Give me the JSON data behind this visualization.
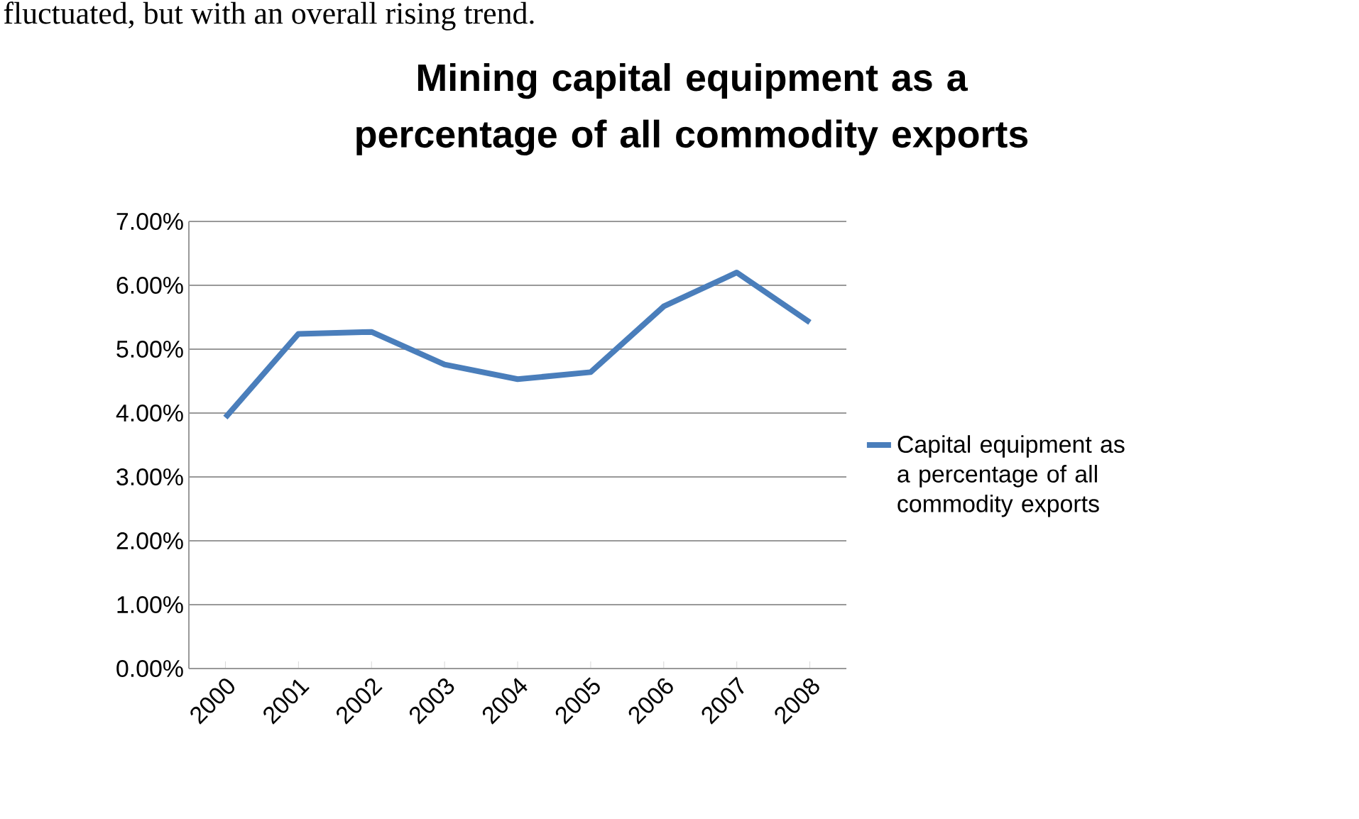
{
  "chart_data": {
    "type": "line",
    "title": "Mining capital equipment as a percentage of all commodity exports",
    "categories": [
      "2000",
      "2001",
      "2002",
      "2003",
      "2004",
      "2005",
      "2006",
      "2007",
      "2008"
    ],
    "series": [
      {
        "name": "Capital equipment as a percentage of all commodity exports",
        "color": "#4a7ebb",
        "values": [
          3.93,
          5.24,
          5.27,
          4.76,
          4.53,
          4.64,
          5.67,
          6.2,
          5.42
        ]
      }
    ],
    "ylim": [
      0,
      7
    ],
    "yticks": [
      {
        "value": 0,
        "label": "0.00%"
      },
      {
        "value": 1,
        "label": "1.00%"
      },
      {
        "value": 2,
        "label": "2.00%"
      },
      {
        "value": 3,
        "label": "3.00%"
      },
      {
        "value": 4,
        "label": "4.00%"
      },
      {
        "value": 5,
        "label": "5.00%"
      },
      {
        "value": 6,
        "label": "6.00%"
      },
      {
        "value": 7,
        "label": "7.00%"
      }
    ],
    "grid": "y",
    "legend": "right",
    "marker": "none",
    "line_style": "solid",
    "annotations": [
      "fluctuated, but with an overall rising trend."
    ]
  }
}
